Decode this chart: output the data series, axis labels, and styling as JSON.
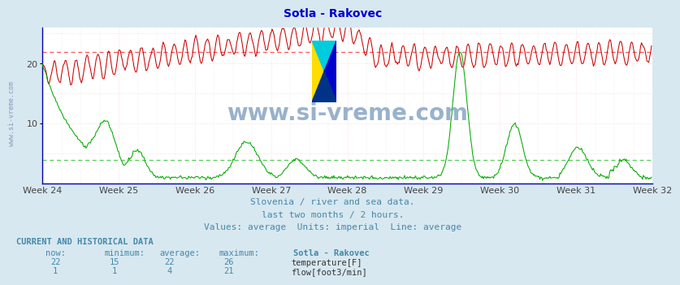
{
  "title": "Sotla - Rakovec",
  "title_color": "#0000cc",
  "bg_color": "#d8e8f0",
  "plot_bg_color": "#ffffff",
  "x_weeks": [
    "Week 24",
    "Week 25",
    "Week 26",
    "Week 27",
    "Week 28",
    "Week 29",
    "Week 30",
    "Week 31",
    "Week 32"
  ],
  "x_week_positions": [
    0,
    84,
    168,
    252,
    336,
    420,
    504,
    588,
    672
  ],
  "xlim": [
    0,
    672
  ],
  "ylim": [
    0,
    26
  ],
  "yticks": [
    10,
    20
  ],
  "grid_color": "#dddddd",
  "grid_color_red": "#ffaaaa",
  "temp_color": "#cc0000",
  "flow_color": "#00aa00",
  "hline_temp_avg": 22,
  "hline_flow_avg": 4,
  "hline_temp_color": "#ff5555",
  "hline_flow_color": "#55cc55",
  "watermark": "www.si-vreme.com",
  "watermark_color": "#7799bb",
  "subtitle1": "Slovenia / river and sea data.",
  "subtitle2": "last two months / 2 hours.",
  "subtitle3": "Values: average  Units: imperial  Line: average",
  "subtitle_color": "#4488aa",
  "table_header": "CURRENT AND HISTORICAL DATA",
  "table_color": "#4488aa",
  "col_now_temp": "22",
  "col_min_temp": "15",
  "col_avg_temp": "22",
  "col_max_temp": "26",
  "col_now_flow": "1",
  "col_min_flow": "1",
  "col_avg_flow": "4",
  "col_max_flow": "21"
}
